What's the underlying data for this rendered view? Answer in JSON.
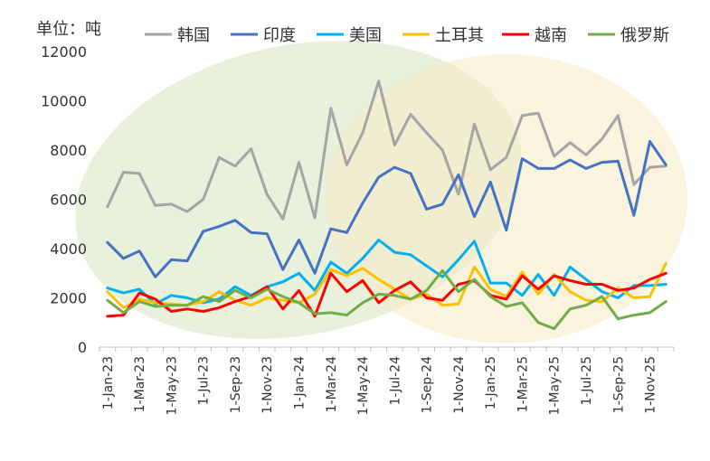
{
  "chart_data": {
    "type": "line",
    "unit_label": "单位：吨",
    "ylim": [
      0,
      12000
    ],
    "yticks": [
      0,
      2000,
      4000,
      6000,
      8000,
      10000,
      12000
    ],
    "x": [
      "1-Jan-23",
      "1-Feb-23",
      "1-Mar-23",
      "1-Apr-23",
      "1-May-23",
      "1-Jun-23",
      "1-Jul-23",
      "1-Aug-23",
      "1-Sep-23",
      "1-Oct-23",
      "1-Nov-23",
      "1-Dec-23",
      "1-Jan-24",
      "1-Feb-24",
      "1-Mar-24",
      "1-Apr-24",
      "1-May-24",
      "1-Jun-24",
      "1-Jul-24",
      "1-Aug-24",
      "1-Sep-24",
      "1-Oct-24",
      "1-Nov-24",
      "1-Dec-24",
      "1-Jan-25",
      "1-Feb-25",
      "1-Mar-25",
      "1-Apr-25",
      "1-May-25",
      "1-Jun-25",
      "1-Jul-25",
      "1-Aug-25",
      "1-Sep-25",
      "1-Oct-25",
      "1-Nov-25",
      "1-Dec-25"
    ],
    "xtick_labels": [
      "1-Jan-23",
      "1-Mar-23",
      "1-May-23",
      "1-Jul-23",
      "1-Sep-23",
      "1-Nov-23",
      "1-Jan-24",
      "1-Mar-24",
      "1-May-24",
      "1-Jul-24",
      "1-Sep-24",
      "1-Nov-24",
      "1-Jan-25",
      "1-Mar-25",
      "1-May-25",
      "1-Jul-25",
      "1-Sep-25",
      "1-Nov-25"
    ],
    "legend_position": "top",
    "grid": false,
    "series": [
      {
        "name": "韩国",
        "color": "#a5a5a5",
        "values": [
          5700,
          7100,
          7050,
          5750,
          5800,
          5500,
          6000,
          7700,
          7350,
          8050,
          6200,
          5200,
          7500,
          5250,
          9700,
          7400,
          8700,
          10800,
          8200,
          9450,
          8700,
          8000,
          6200,
          9050,
          7200,
          7700,
          9400,
          9500,
          7750,
          8300,
          7800,
          8450,
          9400,
          6600,
          7300,
          7350
        ]
      },
      {
        "name": "印度",
        "color": "#4472c4",
        "values": [
          4250,
          3600,
          3900,
          2850,
          3550,
          3500,
          4700,
          4900,
          5150,
          4650,
          4600,
          3150,
          4350,
          3000,
          4800,
          4650,
          5850,
          6900,
          7300,
          7050,
          5600,
          5800,
          7000,
          5300,
          6700,
          4750,
          7650,
          7250,
          7250,
          7600,
          7250,
          7500,
          7550,
          5350,
          8350,
          7400
        ]
      },
      {
        "name": "美国",
        "color": "#00b0f0",
        "values": [
          2400,
          2200,
          2350,
          1750,
          2100,
          2000,
          1800,
          1950,
          2450,
          2100,
          2450,
          2650,
          3000,
          2300,
          3450,
          3000,
          3600,
          4350,
          3850,
          3750,
          3300,
          2850,
          3550,
          4300,
          2600,
          2600,
          2100,
          2950,
          2100,
          3250,
          2750,
          2250,
          2000,
          2500,
          2500,
          2550
        ]
      },
      {
        "name": "土耳其",
        "color": "#ffc000",
        "values": [
          2250,
          1600,
          1950,
          1800,
          1750,
          1700,
          1850,
          2250,
          1900,
          1700,
          2000,
          1900,
          1800,
          2150,
          3150,
          2900,
          3200,
          2750,
          2350,
          1950,
          2150,
          1700,
          1750,
          3250,
          2350,
          2050,
          3050,
          2150,
          2950,
          2250,
          1900,
          1850,
          2400,
          2000,
          2050,
          3400
        ]
      },
      {
        "name": "越南",
        "color": "#ff0000",
        "values": [
          1250,
          1300,
          2200,
          1950,
          1450,
          1550,
          1450,
          1600,
          1850,
          2050,
          2450,
          1550,
          2300,
          1250,
          3000,
          2250,
          2700,
          1800,
          2300,
          2650,
          2000,
          1900,
          2550,
          2700,
          2100,
          1950,
          2900,
          2350,
          2900,
          2700,
          2550,
          2550,
          2300,
          2400,
          2750,
          3000
        ]
      },
      {
        "name": "俄罗斯",
        "color": "#70ad47",
        "values": [
          1900,
          1400,
          1850,
          1650,
          1700,
          1700,
          2050,
          1850,
          2300,
          2000,
          2350,
          2050,
          1800,
          1350,
          1400,
          1300,
          1800,
          2150,
          2100,
          1950,
          2300,
          3100,
          2250,
          2750,
          2050,
          1650,
          1800,
          1000,
          750,
          1550,
          1700,
          2050,
          1150,
          1300,
          1400,
          1850
        ]
      }
    ]
  }
}
